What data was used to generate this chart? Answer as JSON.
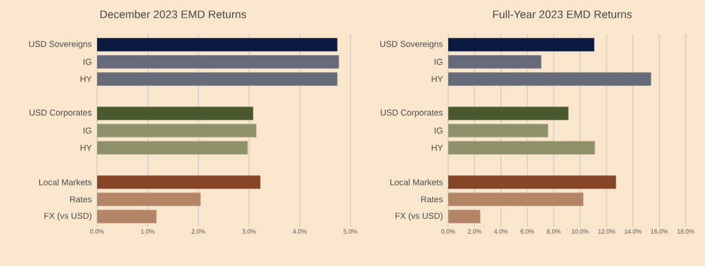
{
  "chart_data": [
    {
      "type": "bar",
      "orientation": "horizontal",
      "title": "December 2023 EMD Returns",
      "categories": [
        "USD Sovereigns",
        "IG",
        "HY",
        null,
        "USD Corporates",
        "IG",
        "HY",
        null,
        "Local Markets",
        "Rates",
        "FX (vs USD)"
      ],
      "values": [
        4.74,
        4.77,
        4.74,
        null,
        3.08,
        3.14,
        2.97,
        null,
        3.22,
        2.04,
        1.17
      ],
      "colors": [
        "#0b1a40",
        "#676a78",
        "#676a78",
        null,
        "#4a5a2e",
        "#8f916b",
        "#8f916b",
        null,
        "#874528",
        "#b48466",
        "#b48466"
      ],
      "xlim": [
        0,
        5
      ],
      "xticks": [
        {
          "value": 0,
          "label": "0.0%"
        },
        {
          "value": 1,
          "label": "1.0%"
        },
        {
          "value": 2,
          "label": "2.0%"
        },
        {
          "value": 3,
          "label": "3.0%"
        },
        {
          "value": 4,
          "label": "4.0%"
        },
        {
          "value": 5,
          "label": "5.0%"
        }
      ],
      "grid": "x"
    },
    {
      "type": "bar",
      "orientation": "horizontal",
      "title": "Full-Year 2023 EMD Returns",
      "categories": [
        "USD Sovereigns",
        "IG",
        "HY",
        null,
        "USD Corporates",
        "IG",
        "HY",
        null,
        "Local Markets",
        "Rates",
        "FX (vs USD)"
      ],
      "values": [
        11.06,
        7.04,
        15.37,
        null,
        9.1,
        7.56,
        11.11,
        null,
        12.71,
        10.23,
        2.42
      ],
      "colors": [
        "#0b1a40",
        "#676a78",
        "#676a78",
        null,
        "#4a5a2e",
        "#8f916b",
        "#8f916b",
        null,
        "#874528",
        "#b48466",
        "#b48466"
      ],
      "xlim": [
        0,
        18
      ],
      "xticks": [
        {
          "value": 0,
          "label": "0.0%"
        },
        {
          "value": 2,
          "label": "2.0%"
        },
        {
          "value": 4,
          "label": "4.0%"
        },
        {
          "value": 6,
          "label": "6.0%"
        },
        {
          "value": 8,
          "label": "8.0%"
        },
        {
          "value": 10,
          "label": "10.0%"
        },
        {
          "value": 12,
          "label": "12.0%"
        },
        {
          "value": 14,
          "label": "14.0%"
        },
        {
          "value": 16,
          "label": "16.0%"
        },
        {
          "value": 18,
          "label": "18.0%"
        }
      ],
      "grid": "x"
    }
  ]
}
